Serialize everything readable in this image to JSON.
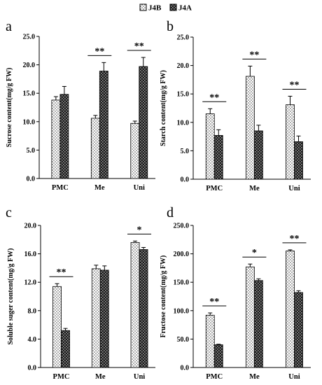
{
  "legend": {
    "placement": "top-center",
    "items": [
      {
        "name": "J4B",
        "pattern": "dots"
      },
      {
        "name": "J4A",
        "pattern": "crosshatch"
      }
    ]
  },
  "chart_data": [
    {
      "panel": "a",
      "type": "bar",
      "categories": [
        "PMC",
        "Me",
        "Uni"
      ],
      "series": [
        {
          "name": "J4B",
          "values": [
            13.8,
            10.6,
            9.7
          ],
          "errors": [
            0.6,
            0.5,
            0.4
          ]
        },
        {
          "name": "J4A",
          "values": [
            14.8,
            18.9,
            19.7
          ],
          "errors": [
            1.4,
            1.5,
            1.6
          ]
        }
      ],
      "ylabel": "Sucrose content(mg/g FW)",
      "ylim": [
        0,
        25
      ],
      "yticks": [
        "0.0",
        "5.0",
        "10.0",
        "15.0",
        "20.0",
        "25.0"
      ],
      "significance": [
        {
          "category": "Me",
          "label": "**"
        },
        {
          "category": "Uni",
          "label": "**"
        }
      ],
      "grid": false
    },
    {
      "panel": "b",
      "type": "bar",
      "categories": [
        "PMC",
        "Me",
        "Uni"
      ],
      "series": [
        {
          "name": "J4B",
          "values": [
            11.5,
            18.1,
            13.1
          ],
          "errors": [
            0.9,
            1.8,
            1.5
          ]
        },
        {
          "name": "J4A",
          "values": [
            7.7,
            8.5,
            6.6
          ],
          "errors": [
            1.0,
            1.0,
            1.0
          ]
        }
      ],
      "ylabel": "Starch content(mg/g FW)",
      "ylim": [
        0,
        25
      ],
      "yticks": [
        "0.0",
        "5.0",
        "10.0",
        "15.0",
        "20.0",
        "25.0"
      ],
      "significance": [
        {
          "category": "PMC",
          "label": "**"
        },
        {
          "category": "Me",
          "label": "**"
        },
        {
          "category": "Uni",
          "label": "**"
        }
      ],
      "grid": false
    },
    {
      "panel": "c",
      "type": "bar",
      "categories": [
        "PMC",
        "Me",
        "Uni"
      ],
      "series": [
        {
          "name": "J4B",
          "values": [
            11.4,
            13.9,
            17.6
          ],
          "errors": [
            0.4,
            0.5,
            0.2
          ]
        },
        {
          "name": "J4A",
          "values": [
            5.2,
            13.7,
            16.6
          ],
          "errors": [
            0.3,
            0.6,
            0.3
          ]
        }
      ],
      "ylabel": "Soluble suger content(mg/g FW)",
      "ylim": [
        0,
        20
      ],
      "yticks": [
        "0.0",
        "4.0",
        "8.0",
        "12.0",
        "16.0",
        "20.0"
      ],
      "significance": [
        {
          "category": "PMC",
          "label": "**"
        },
        {
          "category": "Uni",
          "label": "*"
        }
      ],
      "grid": false
    },
    {
      "panel": "d",
      "type": "bar",
      "categories": [
        "PMC",
        "Me",
        "Uni"
      ],
      "series": [
        {
          "name": "J4B",
          "values": [
            92,
            177,
            205
          ],
          "errors": [
            4,
            5,
            2
          ]
        },
        {
          "name": "J4A",
          "values": [
            40,
            153,
            132
          ],
          "errors": [
            1,
            3,
            3
          ]
        }
      ],
      "ylabel": "Fructose content(mg/g FW)",
      "ylim": [
        0,
        250
      ],
      "yticks": [
        "0.0",
        "50.0",
        "100.0",
        "150.0",
        "200.0",
        "250.0"
      ],
      "significance": [
        {
          "category": "PMC",
          "label": "**"
        },
        {
          "category": "Me",
          "label": "*"
        },
        {
          "category": "Uni",
          "label": "**"
        }
      ],
      "grid": false
    }
  ]
}
